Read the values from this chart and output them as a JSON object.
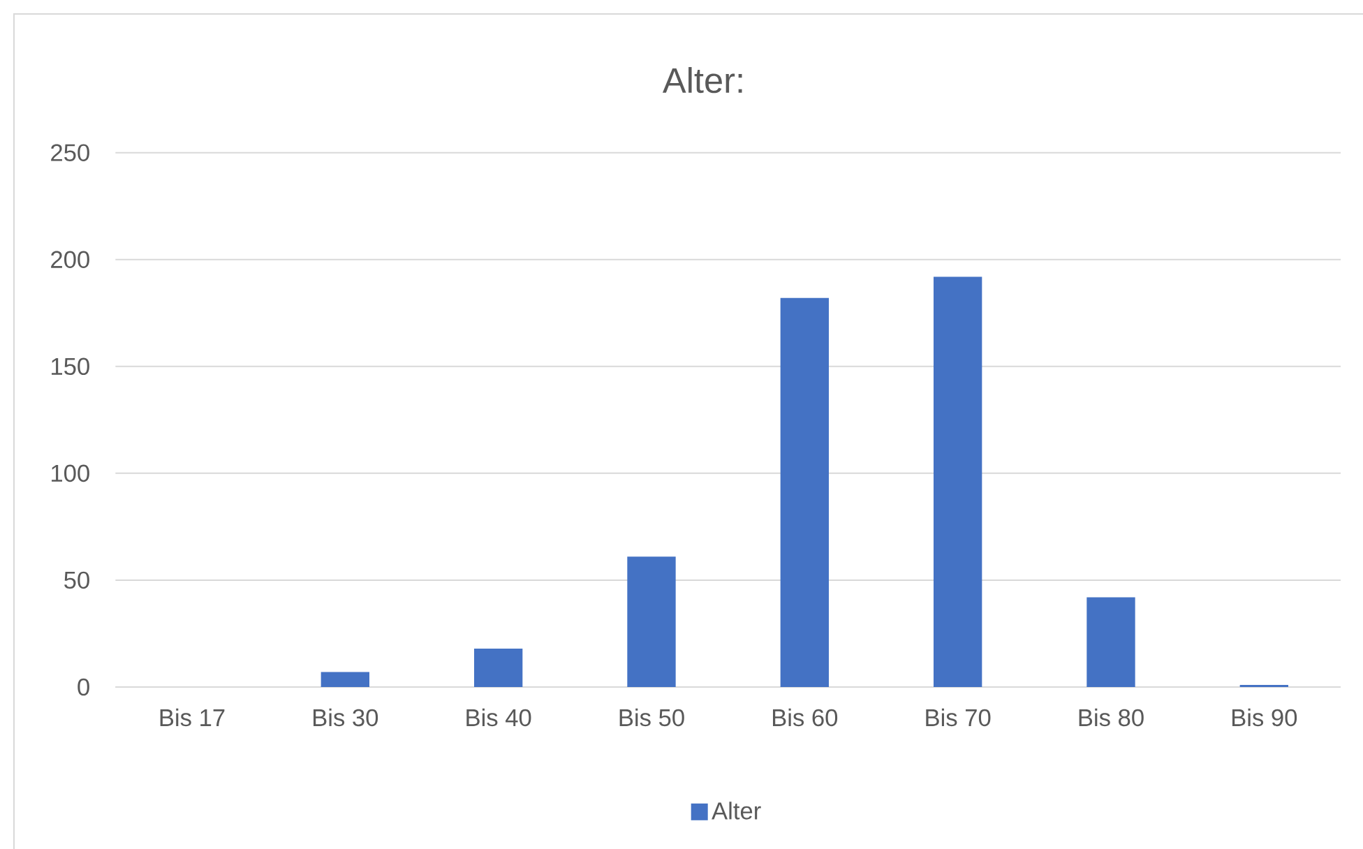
{
  "chart_data": {
    "type": "bar",
    "title": "Alter:",
    "categories": [
      "Bis 17",
      "Bis 30",
      "Bis 40",
      "Bis 50",
      "Bis 60",
      "Bis 70",
      "Bis 80",
      "Bis 90"
    ],
    "series": [
      {
        "name": "Alter",
        "color": "#4472c4",
        "values": [
          0,
          7,
          18,
          61,
          182,
          192,
          42,
          1
        ]
      }
    ],
    "ylim": [
      0,
      250
    ],
    "yticks": [
      0,
      50,
      100,
      150,
      200,
      250
    ],
    "grid": "y",
    "legend": "bottom"
  }
}
